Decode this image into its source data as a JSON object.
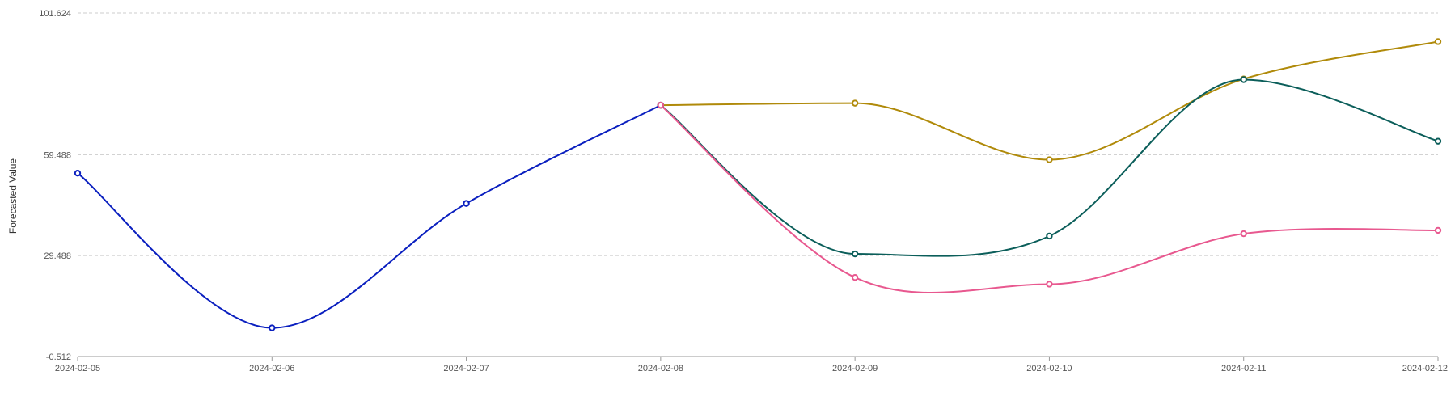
{
  "chart_data": {
    "type": "line",
    "ylabel": "Forecasted Value",
    "xlabel": "",
    "ylim": [
      -0.512,
      101.624
    ],
    "yticks": [
      "101.624",
      "59.488",
      "29.488",
      "-0.512"
    ],
    "ytick_values": [
      101.624,
      59.488,
      29.488,
      -0.512
    ],
    "x": [
      "2024-02-05",
      "2024-02-06",
      "2024-02-07",
      "2024-02-08",
      "2024-02-09",
      "2024-02-10",
      "2024-02-11",
      "2024-02-12"
    ],
    "grid": true,
    "series": [
      {
        "color": "#0a1fbf",
        "points": [
          [
            "2024-02-05",
            54
          ],
          [
            "2024-02-06",
            8
          ],
          [
            "2024-02-07",
            45
          ],
          [
            "2024-02-08",
            74.2
          ]
        ]
      },
      {
        "color": "#b08a0a",
        "points": [
          [
            "2024-02-08",
            74.2
          ],
          [
            "2024-02-09",
            74.8
          ],
          [
            "2024-02-10",
            58
          ],
          [
            "2024-02-11",
            82
          ],
          [
            "2024-02-12",
            93.1
          ]
        ]
      },
      {
        "color": "#0b5e5a",
        "points": [
          [
            "2024-02-08",
            74.2
          ],
          [
            "2024-02-09",
            30
          ],
          [
            "2024-02-10",
            35.3
          ],
          [
            "2024-02-11",
            81.8
          ],
          [
            "2024-02-12",
            63.5
          ]
        ]
      },
      {
        "color": "#e8588f",
        "points": [
          [
            "2024-02-08",
            74.2
          ],
          [
            "2024-02-09",
            23
          ],
          [
            "2024-02-10",
            21
          ],
          [
            "2024-02-11",
            36
          ],
          [
            "2024-02-12",
            37
          ]
        ]
      }
    ]
  }
}
